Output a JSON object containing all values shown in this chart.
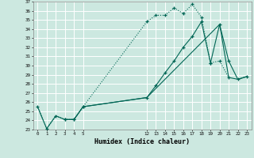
{
  "xlabel": "Humidex (Indice chaleur)",
  "bg_color": "#cce8e0",
  "grid_color": "#ffffff",
  "line_color": "#006655",
  "ylim_min": 23,
  "ylim_max": 37,
  "yticks": [
    23,
    24,
    25,
    26,
    27,
    28,
    29,
    30,
    31,
    32,
    33,
    34,
    35,
    36,
    37
  ],
  "xticks": [
    0,
    1,
    2,
    3,
    4,
    5,
    12,
    13,
    14,
    15,
    16,
    17,
    18,
    19,
    20,
    21,
    22,
    23
  ],
  "line1_x": [
    0,
    1,
    2,
    3,
    4,
    5,
    12,
    13,
    14,
    15,
    16,
    17,
    18,
    19,
    20,
    21
  ],
  "line1_y": [
    25.5,
    23.1,
    24.5,
    24.1,
    24.1,
    25.5,
    34.8,
    35.5,
    35.5,
    36.3,
    35.7,
    36.7,
    35.3,
    30.3,
    30.5,
    28.7
  ],
  "line2_x": [
    3,
    4,
    5,
    12,
    13,
    14,
    15,
    16,
    17,
    18,
    19,
    20,
    21,
    22,
    23
  ],
  "line2_y": [
    24.1,
    24.1,
    25.5,
    26.5,
    27.8,
    29.2,
    30.5,
    32.0,
    33.2,
    34.8,
    30.3,
    34.5,
    30.5,
    28.5,
    28.8
  ],
  "line3_x": [
    0,
    1,
    2,
    3,
    4,
    5,
    12,
    13,
    14,
    15,
    16,
    17,
    18,
    19,
    20,
    21,
    22,
    23
  ],
  "line3_y": [
    25.5,
    23.1,
    24.5,
    24.1,
    24.1,
    25.5,
    26.5,
    27.5,
    28.5,
    29.5,
    30.5,
    31.5,
    32.5,
    33.5,
    34.5,
    28.7,
    28.5,
    28.8
  ]
}
